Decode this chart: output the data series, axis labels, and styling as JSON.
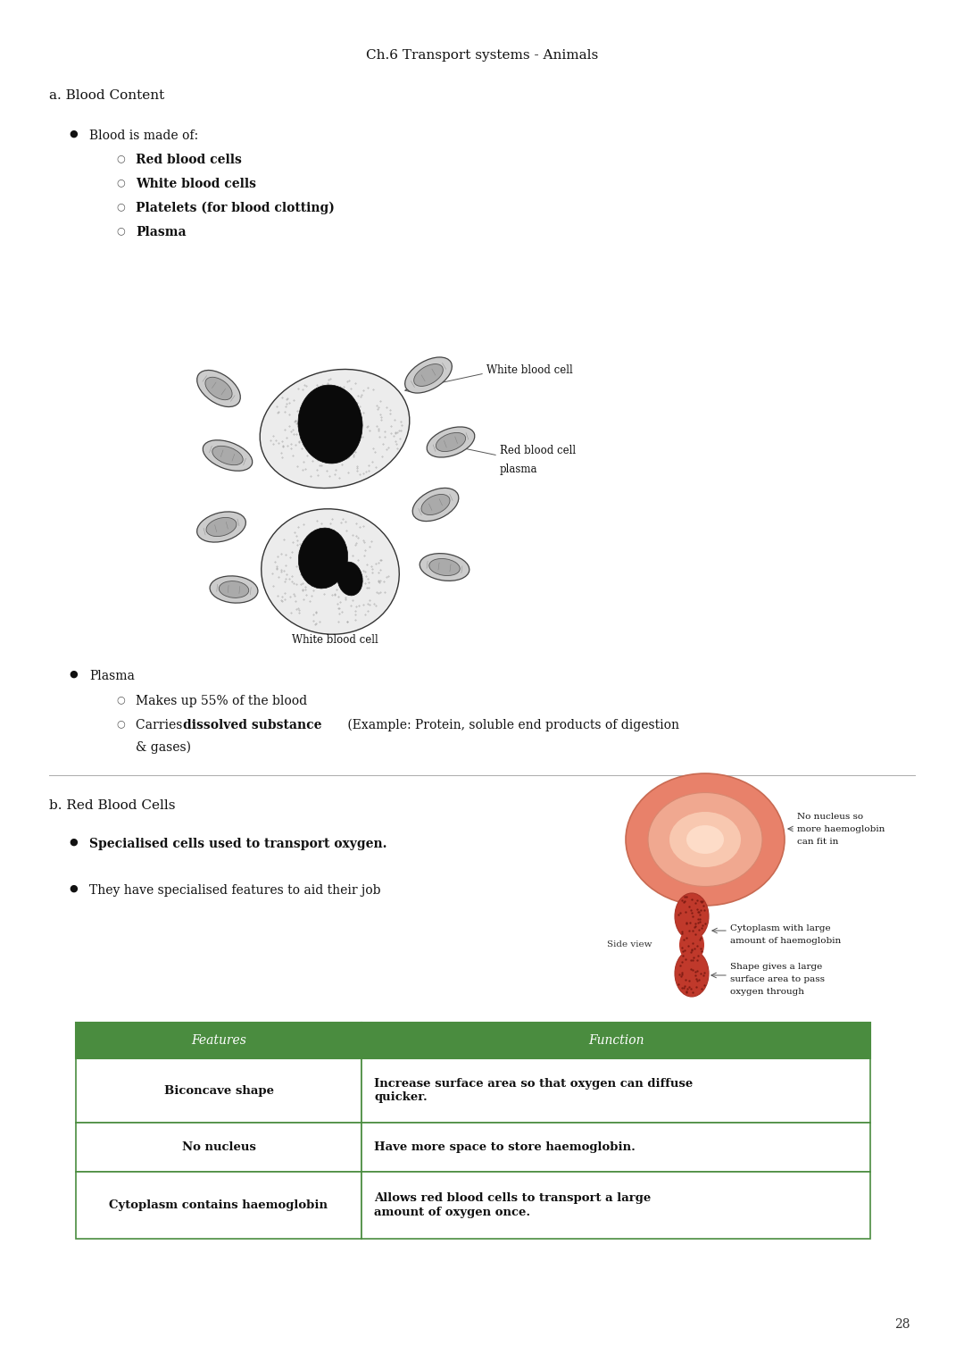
{
  "bg_color": "#ffffff",
  "page_number": "28",
  "title": "Ch.6 Transport systems - Animals",
  "section_a_title": "a. Blood Content",
  "bullet1_main": "Blood is made of:",
  "bullet1_subs": [
    "Red blood cells",
    "White blood cells",
    "Platelets (for blood clotting)",
    "Plasma"
  ],
  "bullet2_main": "Plasma",
  "bullet2_subs_normal": [
    "Makes up 55% of the blood"
  ],
  "section_b_title": "b. Red Blood Cells",
  "bullet3_bold": "Specialised cells used to transport oxygen",
  "bullet4": "They have specialised features to aid their job",
  "table_header": [
    "Features",
    "Function"
  ],
  "table_rows": [
    [
      "Biconcave shape",
      "Increase surface area so that oxygen can diffuse\nquicker."
    ],
    [
      "No nucleus",
      "Have more space to store haemoglobin."
    ],
    [
      "Cytoplasm contains haemoglobin",
      "Allows red blood cells to transport a large\namount of oxygen once."
    ]
  ],
  "table_header_color": "#4a8c3f",
  "table_header_text_color": "#f5f5f5",
  "table_border_color": "#4a8c3f",
  "divider_color": "#aaaaaa",
  "font_family": "DejaVu Serif",
  "title_fontsize": 11,
  "section_fontsize": 11,
  "body_fontsize": 10,
  "sub_fontsize": 10
}
